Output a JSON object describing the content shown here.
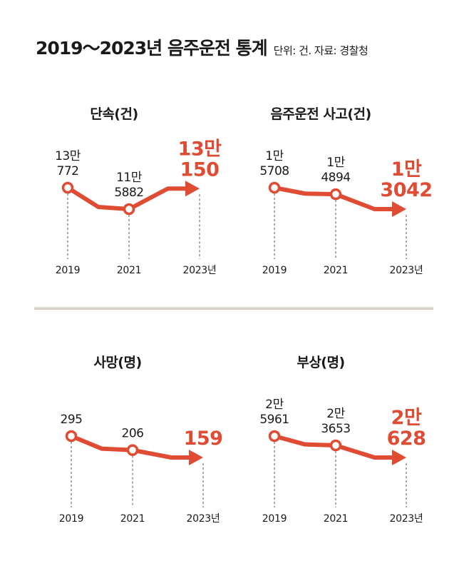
{
  "title": {
    "main": "2019～2023년 음주운전 통계",
    "note": "단위: 건. 자료: 경찰청"
  },
  "colors": {
    "line": "#e04b34",
    "marker_fill": "#ffffff",
    "guide": "#555555",
    "text": "#1a1a1a"
  },
  "chart_data": [
    {
      "type": "line",
      "title": "단속(건)",
      "categories": [
        "2019",
        "2021",
        "2023년"
      ],
      "values": [
        130772,
        115882,
        130150
      ],
      "point_labels": [
        [
          "13만",
          "772"
        ],
        [
          "11만",
          "5882"
        ],
        [
          "13만",
          "150"
        ]
      ]
    },
    {
      "type": "line",
      "title": "음주운전 사고(건)",
      "categories": [
        "2019",
        "2021",
        "2023년"
      ],
      "values": [
        15708,
        14894,
        13042
      ],
      "point_labels": [
        [
          "1만",
          "5708"
        ],
        [
          "1만",
          "4894"
        ],
        [
          "1만",
          "3042"
        ]
      ]
    },
    {
      "type": "line",
      "title": "사망(명)",
      "categories": [
        "2019",
        "2021",
        "2023년"
      ],
      "values": [
        295,
        206,
        159
      ],
      "point_labels": [
        [
          "295"
        ],
        [
          "206"
        ],
        [
          "159"
        ]
      ]
    },
    {
      "type": "line",
      "title": "부상(명)",
      "categories": [
        "2019",
        "2021",
        "2023년"
      ],
      "values": [
        25961,
        23653,
        20628
      ],
      "point_labels": [
        [
          "2만",
          "5961"
        ],
        [
          "2만",
          "3653"
        ],
        [
          "2만",
          "628"
        ]
      ]
    }
  ]
}
